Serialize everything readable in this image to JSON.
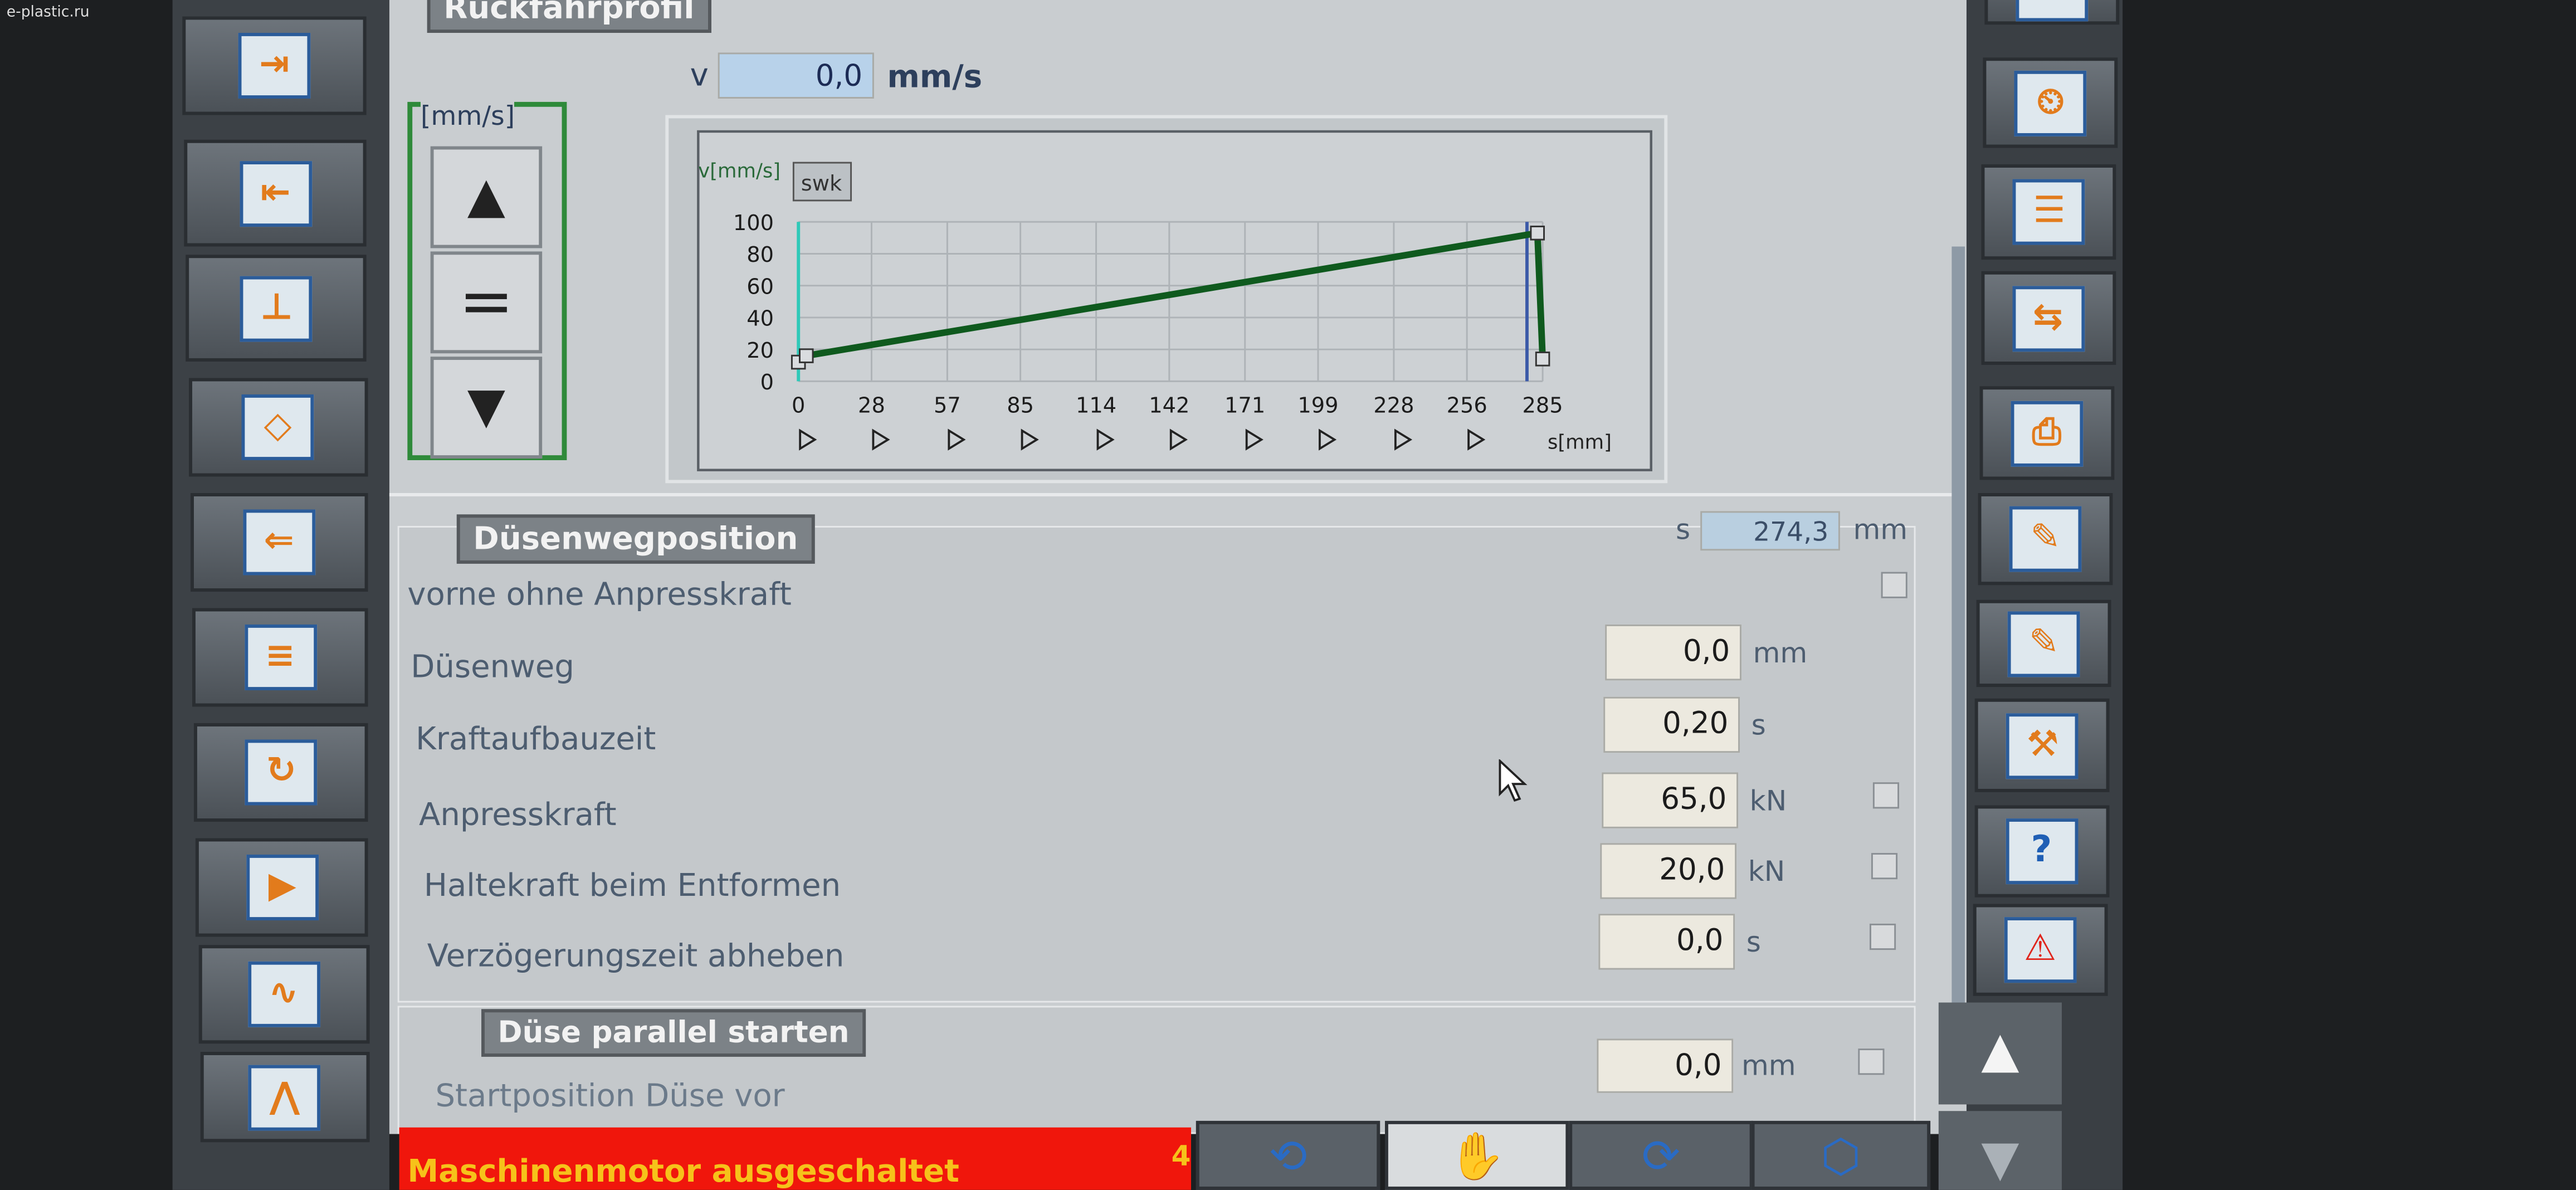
{
  "watermark": "e-plastic.ru",
  "header": {
    "title": "Rückfahrprofil",
    "v_label": "v",
    "v_value": "0,0",
    "v_unit": "mm/s"
  },
  "speed_buttons": {
    "label": "[mm/s]",
    "up": "▲",
    "equal": "=",
    "down": "▼"
  },
  "chart_data": {
    "type": "line",
    "ylabel": "v[mm/s]",
    "xlabel": "s[mm]",
    "button": "swk",
    "xlim": [
      0,
      285
    ],
    "ylim": [
      0,
      100
    ],
    "xticks": [
      0,
      28,
      57,
      85,
      114,
      142,
      171,
      199,
      228,
      256,
      285
    ],
    "yticks": [
      0,
      20,
      40,
      60,
      80,
      100
    ],
    "grid": true,
    "series_color": "#0f5a1e",
    "points": [
      [
        0,
        12
      ],
      [
        3,
        16
      ],
      [
        283,
        93
      ],
      [
        285,
        14
      ]
    ],
    "markers": [
      [
        0,
        12
      ],
      [
        3,
        16
      ],
      [
        283,
        93
      ],
      [
        285,
        14
      ]
    ],
    "vertical_lines": [
      {
        "x": 0,
        "color": "#2fc9b8"
      },
      {
        "x": 279,
        "color": "#3b5aa8"
      }
    ]
  },
  "nozzle": {
    "title": "Düsenwegposition",
    "s_label": "s",
    "s_value": "274,3",
    "s_unit": "mm",
    "rows": [
      {
        "label": "vorne ohne Anpresskraft",
        "value": null,
        "unit": null
      },
      {
        "label": "Düsenweg",
        "value": "0,0",
        "unit": "mm"
      },
      {
        "label": "Kraftaufbauzeit",
        "value": "0,20",
        "unit": "s"
      },
      {
        "label": "Anpresskraft",
        "value": "65,0",
        "unit": "kN"
      },
      {
        "label": "Haltekraft beim Entformen",
        "value": "20,0",
        "unit": "kN"
      },
      {
        "label": "Verzögerungszeit abheben",
        "value": "0,0",
        "unit": "s"
      }
    ]
  },
  "parallel": {
    "title": "Düse parallel starten",
    "label": "Startposition Düse vor",
    "value": "0,0",
    "unit": "mm"
  },
  "status": {
    "message": "Maschinenmotor ausgeschaltet",
    "count": "4",
    "color": "#f0160c",
    "text_color": "#f6c21a"
  },
  "left_toolbar": [
    "nozzle-forward-icon",
    "nozzle-back-icon",
    "nozzle-contact-icon",
    "injection-unit-icon",
    "screw-back-icon",
    "screw-profile-icon",
    "screw-rotate-icon",
    "injection-icon",
    "heating-icon",
    "profile-graph-icon"
  ],
  "right_toolbar": [
    "save-icon",
    "timer-icon",
    "pages-icon",
    "transfer-icon",
    "printer-icon",
    "edit-icon",
    "edit-settings-icon",
    "tools-icon",
    "help-icon",
    "alarm-icon"
  ],
  "bottom_buttons": [
    "auto-cycle-icon",
    "hand-mode-icon",
    "semi-auto-icon",
    "full-auto-icon"
  ],
  "nav": {
    "up": "▲",
    "down": "▼"
  }
}
